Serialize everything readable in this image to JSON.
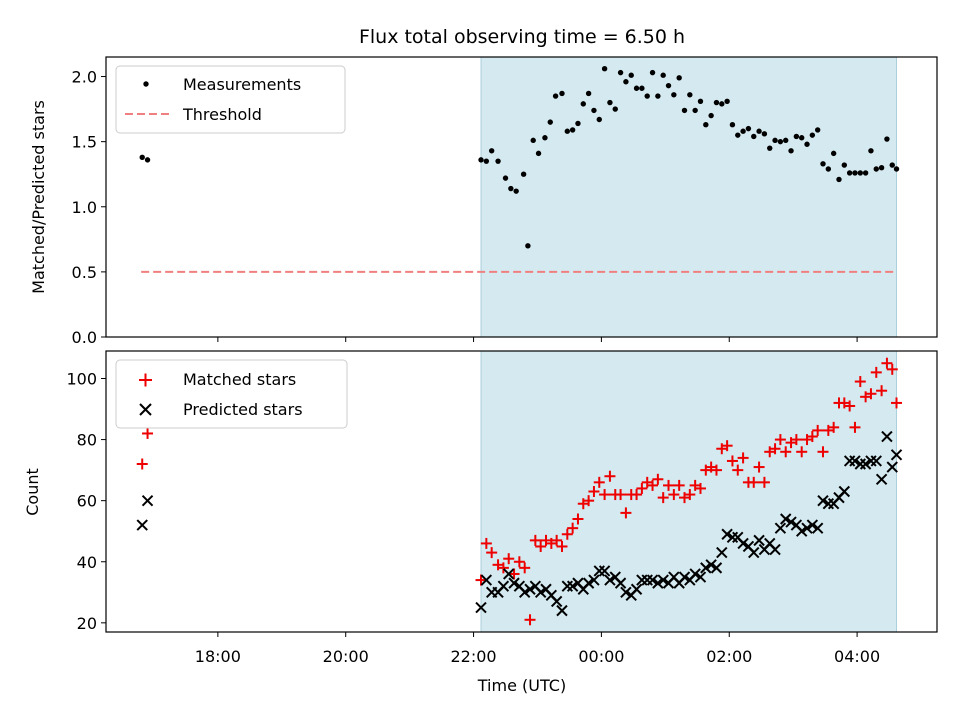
{
  "figure": {
    "title": "Flux total observing time = 6.50 h",
    "xlabel": "Time (UTC)"
  },
  "chart_data": [
    {
      "type": "scatter",
      "panel": "top",
      "ylabel": "Matched/Predicted stars",
      "xlim": [
        "16:15",
        "05:15"
      ],
      "ylim": [
        0,
        2.15
      ],
      "yticks": [
        0.0,
        0.5,
        1.0,
        1.5,
        2.0
      ],
      "ytick_labels": [
        "0.0",
        "0.5",
        "1.0",
        "1.5",
        "2.0"
      ],
      "shaded_interval": [
        "22:07",
        "04:37"
      ],
      "shaded_color": "#d4eaf0",
      "threshold": {
        "name": "Threshold",
        "value": 0.5,
        "x_range": [
          "16:48",
          "04:37"
        ],
        "color": "#f08080"
      },
      "legend": {
        "placement": "upper-left"
      },
      "series": [
        {
          "name": "Measurements",
          "color": "#000000",
          "marker": "dot",
          "x": [
            "16:49",
            "16:54",
            "22:07",
            "22:12",
            "22:17",
            "22:23",
            "22:30",
            "22:35",
            "22:40",
            "22:47",
            "22:51",
            "22:56",
            "23:01",
            "23:07",
            "23:12",
            "23:17",
            "23:23",
            "23:28",
            "23:33",
            "23:38",
            "23:43",
            "23:48",
            "23:53",
            "23:58",
            "00:03",
            "00:08",
            "00:13",
            "00:18",
            "00:23",
            "00:28",
            "00:33",
            "00:38",
            "00:43",
            "00:48",
            "00:53",
            "00:58",
            "01:03",
            "01:08",
            "01:13",
            "01:18",
            "01:23",
            "01:28",
            "01:33",
            "01:38",
            "01:43",
            "01:48",
            "01:53",
            "01:58",
            "02:03",
            "02:08",
            "02:13",
            "02:18",
            "02:23",
            "02:28",
            "02:33",
            "02:38",
            "02:43",
            "02:48",
            "02:53",
            "02:58",
            "03:03",
            "03:08",
            "03:13",
            "03:18",
            "03:23",
            "03:28",
            "03:33",
            "03:38",
            "03:43",
            "03:48",
            "03:53",
            "03:58",
            "04:03",
            "04:08",
            "04:13",
            "04:18",
            "04:23",
            "04:28",
            "04:33",
            "04:37"
          ],
          "y": [
            1.38,
            1.36,
            1.36,
            1.35,
            1.43,
            1.35,
            1.22,
            1.14,
            1.12,
            1.25,
            0.7,
            1.51,
            1.41,
            1.53,
            1.65,
            1.85,
            1.87,
            1.58,
            1.59,
            1.64,
            1.79,
            1.87,
            1.74,
            1.67,
            2.06,
            1.8,
            1.75,
            2.03,
            1.96,
            2.01,
            1.91,
            1.91,
            1.85,
            2.03,
            1.85,
            2.01,
            1.93,
            1.86,
            1.99,
            1.74,
            1.86,
            1.74,
            1.81,
            1.63,
            1.7,
            1.8,
            1.79,
            1.81,
            1.63,
            1.55,
            1.58,
            1.6,
            1.54,
            1.58,
            1.56,
            1.45,
            1.51,
            1.5,
            1.51,
            1.43,
            1.54,
            1.53,
            1.48,
            1.55,
            1.59,
            1.33,
            1.29,
            1.41,
            1.21,
            1.32,
            1.26,
            1.26,
            1.26,
            1.26,
            1.43,
            1.29,
            1.3,
            1.52,
            1.32,
            1.29
          ]
        }
      ]
    },
    {
      "type": "scatter",
      "panel": "bottom",
      "ylabel": "Count",
      "xlim": [
        "16:15",
        "05:15"
      ],
      "ylim": [
        17,
        109
      ],
      "yticks": [
        20,
        40,
        60,
        80,
        100
      ],
      "ytick_labels": [
        "20",
        "40",
        "60",
        "80",
        "100"
      ],
      "xticks": [
        "18:00",
        "20:00",
        "22:00",
        "00:00",
        "02:00",
        "04:00"
      ],
      "xtick_labels": [
        "18:00",
        "20:00",
        "22:00",
        "00:00",
        "02:00",
        "04:00"
      ],
      "shaded_interval": [
        "22:07",
        "04:37"
      ],
      "shaded_color": "#d4eaf0",
      "legend": {
        "placement": "upper-left"
      },
      "series": [
        {
          "name": "Matched stars",
          "color": "#ee0000",
          "marker": "plus",
          "x": [
            "16:49",
            "16:54",
            "22:07",
            "22:12",
            "22:17",
            "22:23",
            "22:28",
            "22:33",
            "22:38",
            "22:43",
            "22:48",
            "22:53",
            "22:58",
            "23:03",
            "23:08",
            "23:13",
            "23:18",
            "23:23",
            "23:28",
            "23:33",
            "23:38",
            "23:43",
            "23:48",
            "23:53",
            "23:58",
            "00:03",
            "00:08",
            "00:13",
            "00:18",
            "00:23",
            "00:28",
            "00:33",
            "00:38",
            "00:43",
            "00:48",
            "00:53",
            "00:58",
            "01:03",
            "01:08",
            "01:13",
            "01:18",
            "01:23",
            "01:28",
            "01:33",
            "01:38",
            "01:43",
            "01:48",
            "01:53",
            "01:58",
            "02:03",
            "02:08",
            "02:13",
            "02:18",
            "02:23",
            "02:28",
            "02:33",
            "02:38",
            "02:43",
            "02:48",
            "02:53",
            "02:58",
            "03:03",
            "03:08",
            "03:13",
            "03:18",
            "03:23",
            "03:28",
            "03:33",
            "03:38",
            "03:43",
            "03:48",
            "03:53",
            "03:58",
            "04:03",
            "04:08",
            "04:13",
            "04:18",
            "04:23",
            "04:28",
            "04:33",
            "04:37"
          ],
          "y": [
            72,
            82,
            34,
            46,
            43,
            39,
            38,
            41,
            36,
            40,
            38,
            21,
            47,
            45,
            47,
            46,
            47,
            45,
            49,
            51,
            54,
            59,
            60,
            63,
            66,
            62,
            68,
            62,
            62,
            56,
            62,
            62,
            64,
            66,
            65,
            67,
            61,
            65,
            62,
            65,
            61,
            62,
            65,
            64,
            70,
            71,
            70,
            77,
            78,
            73,
            70,
            74,
            66,
            66,
            71,
            66,
            76,
            77,
            80,
            76,
            79,
            80,
            76,
            80,
            81,
            83,
            76,
            83,
            84,
            92,
            92,
            91,
            84,
            99,
            94,
            95,
            102,
            96,
            105,
            103,
            92
          ]
        },
        {
          "name": "Predicted stars",
          "color": "#000000",
          "marker": "x",
          "x": [
            "16:49",
            "16:54",
            "22:07",
            "22:12",
            "22:17",
            "22:23",
            "22:28",
            "22:33",
            "22:38",
            "22:43",
            "22:48",
            "22:53",
            "22:58",
            "23:03",
            "23:08",
            "23:13",
            "23:18",
            "23:23",
            "23:28",
            "23:33",
            "23:38",
            "23:43",
            "23:48",
            "23:53",
            "23:58",
            "00:03",
            "00:08",
            "00:13",
            "00:18",
            "00:23",
            "00:28",
            "00:33",
            "00:38",
            "00:43",
            "00:48",
            "00:53",
            "00:58",
            "01:03",
            "01:08",
            "01:13",
            "01:18",
            "01:23",
            "01:28",
            "01:33",
            "01:38",
            "01:43",
            "01:48",
            "01:53",
            "01:58",
            "02:03",
            "02:08",
            "02:13",
            "02:18",
            "02:23",
            "02:28",
            "02:33",
            "02:38",
            "02:43",
            "02:48",
            "02:53",
            "02:58",
            "03:03",
            "03:08",
            "03:13",
            "03:18",
            "03:23",
            "03:28",
            "03:33",
            "03:38",
            "03:43",
            "03:48",
            "03:53",
            "03:58",
            "04:03",
            "04:08",
            "04:13",
            "04:18",
            "04:23",
            "04:28",
            "04:33",
            "04:37"
          ],
          "y": [
            52,
            60,
            25,
            34,
            30,
            30,
            32,
            36,
            33,
            32,
            30,
            31,
            32,
            30,
            31,
            29,
            27,
            24,
            32,
            32,
            33,
            31,
            33,
            34,
            37,
            37,
            34,
            35,
            33,
            30,
            29,
            31,
            34,
            34,
            34,
            33,
            34,
            33,
            35,
            33,
            35,
            34,
            36,
            35,
            38,
            39,
            38,
            43,
            49,
            48,
            48,
            46,
            45,
            43,
            47,
            44,
            46,
            44,
            51,
            54,
            53,
            52,
            50,
            51,
            52,
            51,
            60,
            59,
            59,
            61,
            63,
            73,
            73,
            72,
            72,
            73,
            73,
            67,
            81,
            71,
            75
          ]
        }
      ]
    }
  ]
}
